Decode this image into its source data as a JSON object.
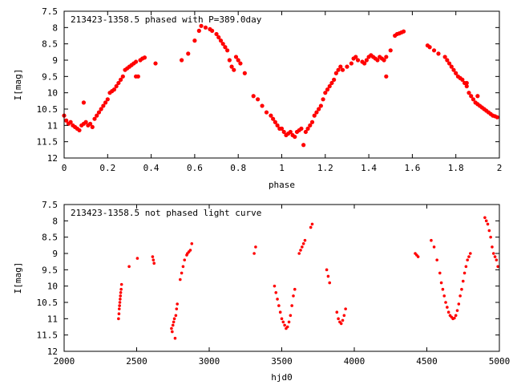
{
  "chart_data": [
    {
      "type": "scatter",
      "title": "213423-1358.5 phased with P=389.0day",
      "xlabel": "phase",
      "ylabel": "I[mag]",
      "xlim": [
        0,
        2
      ],
      "ylim": [
        12,
        7.5
      ],
      "y_inverted": true,
      "grid": false,
      "marker_color": "#ff0000",
      "x_ticks": [
        0,
        0.2,
        0.4,
        0.6,
        0.8,
        1,
        1.2,
        1.4,
        1.6,
        1.8,
        2
      ],
      "x_tick_labels": [
        "0",
        "0.2",
        "0.4",
        "0.6",
        "0.8",
        "1",
        "1.2",
        "1.4",
        "1.6",
        "1.8",
        "2"
      ],
      "y_ticks": [
        7.5,
        8,
        8.5,
        9,
        9.5,
        10,
        10.5,
        11,
        11.5,
        12
      ],
      "y_tick_labels": [
        "7.5",
        "8",
        "8.5",
        "9",
        "9.5",
        "10",
        "10.5",
        "11",
        "11.5",
        "12"
      ],
      "series": [
        {
          "points": [
            [
              0.0,
              10.7
            ],
            [
              0.01,
              10.85
            ],
            [
              0.02,
              10.95
            ],
            [
              0.03,
              10.9
            ],
            [
              0.04,
              11.0
            ],
            [
              0.05,
              11.05
            ],
            [
              0.06,
              11.1
            ],
            [
              0.07,
              11.15
            ],
            [
              0.08,
              11.0
            ],
            [
              0.09,
              10.95
            ],
            [
              0.1,
              10.9
            ],
            [
              0.09,
              10.3
            ],
            [
              0.11,
              11.0
            ],
            [
              0.12,
              10.95
            ],
            [
              0.13,
              11.05
            ],
            [
              0.14,
              10.8
            ],
            [
              0.15,
              10.7
            ],
            [
              0.16,
              10.6
            ],
            [
              0.17,
              10.5
            ],
            [
              0.18,
              10.4
            ],
            [
              0.19,
              10.3
            ],
            [
              0.2,
              10.2
            ],
            [
              0.21,
              10.0
            ],
            [
              0.22,
              9.95
            ],
            [
              0.23,
              9.9
            ],
            [
              0.24,
              9.8
            ],
            [
              0.25,
              9.7
            ],
            [
              0.26,
              9.6
            ],
            [
              0.27,
              9.5
            ],
            [
              0.28,
              9.3
            ],
            [
              0.29,
              9.25
            ],
            [
              0.3,
              9.2
            ],
            [
              0.31,
              9.15
            ],
            [
              0.32,
              9.1
            ],
            [
              0.33,
              9.05
            ],
            [
              0.33,
              9.5
            ],
            [
              0.34,
              9.5
            ],
            [
              0.35,
              9.0
            ],
            [
              0.36,
              8.95
            ],
            [
              0.37,
              8.92
            ],
            [
              0.42,
              9.1
            ],
            [
              0.54,
              9.0
            ],
            [
              0.57,
              8.8
            ],
            [
              0.6,
              8.4
            ],
            [
              0.62,
              8.1
            ],
            [
              0.63,
              7.95
            ],
            [
              0.65,
              8.0
            ],
            [
              0.67,
              8.05
            ],
            [
              0.68,
              8.1
            ],
            [
              0.7,
              8.2
            ],
            [
              0.71,
              8.3
            ],
            [
              0.72,
              8.4
            ],
            [
              0.73,
              8.5
            ],
            [
              0.74,
              8.6
            ],
            [
              0.75,
              8.7
            ],
            [
              0.76,
              9.0
            ],
            [
              0.77,
              9.2
            ],
            [
              0.78,
              9.3
            ],
            [
              0.79,
              8.9
            ],
            [
              0.8,
              9.0
            ],
            [
              0.81,
              9.1
            ],
            [
              0.83,
              9.4
            ],
            [
              0.87,
              10.1
            ],
            [
              0.89,
              10.2
            ],
            [
              0.91,
              10.4
            ],
            [
              0.93,
              10.6
            ],
            [
              0.95,
              10.7
            ],
            [
              0.96,
              10.8
            ],
            [
              0.97,
              10.9
            ],
            [
              0.98,
              11.0
            ],
            [
              0.99,
              11.1
            ],
            [
              1.0,
              11.1
            ],
            [
              1.01,
              11.2
            ],
            [
              1.02,
              11.3
            ],
            [
              1.03,
              11.25
            ],
            [
              1.04,
              11.2
            ],
            [
              1.05,
              11.3
            ],
            [
              1.06,
              11.35
            ],
            [
              1.07,
              11.2
            ],
            [
              1.08,
              11.15
            ],
            [
              1.09,
              11.1
            ],
            [
              1.1,
              11.6
            ],
            [
              1.11,
              11.2
            ],
            [
              1.12,
              11.1
            ],
            [
              1.13,
              11.0
            ],
            [
              1.14,
              10.9
            ],
            [
              1.15,
              10.7
            ],
            [
              1.16,
              10.6
            ],
            [
              1.17,
              10.5
            ],
            [
              1.18,
              10.4
            ],
            [
              1.19,
              10.2
            ],
            [
              1.2,
              10.0
            ],
            [
              1.21,
              9.9
            ],
            [
              1.22,
              9.8
            ],
            [
              1.23,
              9.7
            ],
            [
              1.24,
              9.6
            ],
            [
              1.25,
              9.4
            ],
            [
              1.26,
              9.3
            ],
            [
              1.27,
              9.2
            ],
            [
              1.28,
              9.3
            ],
            [
              1.3,
              9.2
            ],
            [
              1.32,
              9.1
            ],
            [
              1.33,
              8.95
            ],
            [
              1.34,
              8.9
            ],
            [
              1.35,
              9.0
            ],
            [
              1.37,
              9.05
            ],
            [
              1.38,
              9.1
            ],
            [
              1.39,
              9.0
            ],
            [
              1.4,
              8.9
            ],
            [
              1.41,
              8.85
            ],
            [
              1.42,
              8.9
            ],
            [
              1.43,
              8.95
            ],
            [
              1.44,
              9.0
            ],
            [
              1.45,
              8.9
            ],
            [
              1.46,
              8.95
            ],
            [
              1.47,
              9.0
            ],
            [
              1.48,
              8.9
            ],
            [
              1.48,
              9.5
            ],
            [
              1.5,
              8.7
            ],
            [
              1.52,
              8.25
            ],
            [
              1.53,
              8.2
            ],
            [
              1.54,
              8.18
            ],
            [
              1.55,
              8.15
            ],
            [
              1.56,
              8.12
            ],
            [
              1.67,
              8.55
            ],
            [
              1.68,
              8.6
            ],
            [
              1.7,
              8.7
            ],
            [
              1.72,
              8.8
            ],
            [
              1.75,
              8.9
            ],
            [
              1.76,
              9.0
            ],
            [
              1.77,
              9.1
            ],
            [
              1.78,
              9.2
            ],
            [
              1.79,
              9.3
            ],
            [
              1.8,
              9.4
            ],
            [
              1.81,
              9.5
            ],
            [
              1.82,
              9.55
            ],
            [
              1.83,
              9.6
            ],
            [
              1.84,
              9.7
            ],
            [
              1.85,
              9.8
            ],
            [
              1.86,
              10.0
            ],
            [
              1.87,
              10.1
            ],
            [
              1.88,
              10.2
            ],
            [
              1.89,
              10.3
            ],
            [
              1.9,
              10.35
            ],
            [
              1.91,
              10.4
            ],
            [
              1.92,
              10.45
            ],
            [
              1.93,
              10.5
            ],
            [
              1.94,
              10.55
            ],
            [
              1.95,
              10.6
            ],
            [
              1.96,
              10.65
            ],
            [
              1.97,
              10.7
            ],
            [
              1.98,
              10.72
            ],
            [
              1.99,
              10.75
            ],
            [
              1.9,
              10.1
            ],
            [
              1.85,
              9.7
            ]
          ]
        }
      ]
    },
    {
      "type": "scatter",
      "title": "213423-1358.5 not phased light curve",
      "xlabel": "hjd0",
      "ylabel": "I[mag]",
      "xlim": [
        2000,
        5000
      ],
      "ylim": [
        12,
        7.5
      ],
      "y_inverted": true,
      "grid": false,
      "marker_color": "#ff0000",
      "x_ticks": [
        2000,
        2500,
        3000,
        3500,
        4000,
        4500,
        5000
      ],
      "x_tick_labels": [
        "2000",
        "2500",
        "3000",
        "3500",
        "4000",
        "4500",
        "5000"
      ],
      "y_ticks": [
        7.5,
        8,
        8.5,
        9,
        9.5,
        10,
        10.5,
        11,
        11.5,
        12
      ],
      "y_tick_labels": [
        "7.5",
        "8",
        "8.5",
        "9",
        "9.5",
        "10",
        "10.5",
        "11",
        "11.5",
        "12"
      ],
      "series": [
        {
          "points": [
            [
              2375,
              11.0
            ],
            [
              2378,
              10.85
            ],
            [
              2380,
              10.7
            ],
            [
              2382,
              10.6
            ],
            [
              2384,
              10.5
            ],
            [
              2386,
              10.4
            ],
            [
              2388,
              10.3
            ],
            [
              2390,
              10.2
            ],
            [
              2393,
              10.1
            ],
            [
              2396,
              9.95
            ],
            [
              2448,
              9.4
            ],
            [
              2505,
              9.15
            ],
            [
              2610,
              9.1
            ],
            [
              2615,
              9.2
            ],
            [
              2620,
              9.3
            ],
            [
              2740,
              11.3
            ],
            [
              2745,
              11.4
            ],
            [
              2750,
              11.2
            ],
            [
              2755,
              11.1
            ],
            [
              2760,
              11.0
            ],
            [
              2765,
              11.6
            ],
            [
              2770,
              10.9
            ],
            [
              2775,
              10.7
            ],
            [
              2780,
              10.55
            ],
            [
              2800,
              9.8
            ],
            [
              2810,
              9.6
            ],
            [
              2820,
              9.4
            ],
            [
              2830,
              9.2
            ],
            [
              2845,
              9.05
            ],
            [
              2850,
              9.0
            ],
            [
              2860,
              8.95
            ],
            [
              2870,
              8.9
            ],
            [
              2880,
              8.7
            ],
            [
              3310,
              9.0
            ],
            [
              3320,
              8.8
            ],
            [
              3450,
              10.0
            ],
            [
              3460,
              10.2
            ],
            [
              3470,
              10.4
            ],
            [
              3480,
              10.6
            ],
            [
              3490,
              10.8
            ],
            [
              3500,
              11.0
            ],
            [
              3510,
              11.1
            ],
            [
              3520,
              11.2
            ],
            [
              3530,
              11.3
            ],
            [
              3540,
              11.25
            ],
            [
              3550,
              11.1
            ],
            [
              3560,
              10.9
            ],
            [
              3570,
              10.6
            ],
            [
              3580,
              10.3
            ],
            [
              3590,
              10.1
            ],
            [
              3620,
              9.0
            ],
            [
              3630,
              8.9
            ],
            [
              3640,
              8.8
            ],
            [
              3650,
              8.7
            ],
            [
              3660,
              8.6
            ],
            [
              3700,
              8.2
            ],
            [
              3710,
              8.1
            ],
            [
              3810,
              9.5
            ],
            [
              3820,
              9.7
            ],
            [
              3830,
              9.9
            ],
            [
              3880,
              10.8
            ],
            [
              3890,
              11.0
            ],
            [
              3900,
              11.1
            ],
            [
              3910,
              11.15
            ],
            [
              3920,
              11.05
            ],
            [
              3930,
              10.9
            ],
            [
              3940,
              10.7
            ],
            [
              4420,
              9.0
            ],
            [
              4430,
              9.05
            ],
            [
              4440,
              9.1
            ],
            [
              4530,
              8.6
            ],
            [
              4550,
              8.8
            ],
            [
              4570,
              9.2
            ],
            [
              4590,
              9.6
            ],
            [
              4600,
              9.9
            ],
            [
              4610,
              10.1
            ],
            [
              4620,
              10.3
            ],
            [
              4630,
              10.5
            ],
            [
              4640,
              10.65
            ],
            [
              4650,
              10.8
            ],
            [
              4660,
              10.9
            ],
            [
              4670,
              10.95
            ],
            [
              4680,
              11.0
            ],
            [
              4690,
              10.98
            ],
            [
              4700,
              10.9
            ],
            [
              4710,
              10.75
            ],
            [
              4720,
              10.55
            ],
            [
              4730,
              10.3
            ],
            [
              4740,
              10.1
            ],
            [
              4750,
              9.85
            ],
            [
              4760,
              9.6
            ],
            [
              4770,
              9.4
            ],
            [
              4780,
              9.2
            ],
            [
              4790,
              9.1
            ],
            [
              4800,
              9.0
            ],
            [
              4900,
              7.9
            ],
            [
              4910,
              8.0
            ],
            [
              4920,
              8.1
            ],
            [
              4930,
              8.3
            ],
            [
              4940,
              8.5
            ],
            [
              4950,
              8.8
            ],
            [
              4960,
              9.0
            ],
            [
              4970,
              9.1
            ],
            [
              4980,
              9.2
            ],
            [
              4990,
              9.4
            ]
          ]
        }
      ]
    }
  ]
}
